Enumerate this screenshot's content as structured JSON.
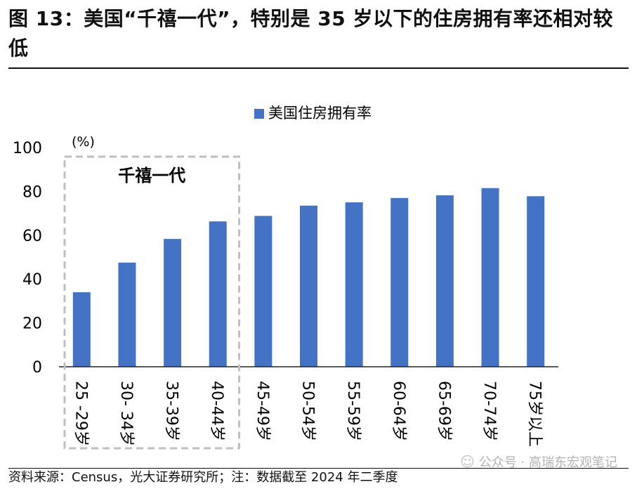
{
  "figure": {
    "title": "图 13：美国“千禧一代”，特别是 35 岁以下的住房拥有率还相对较低",
    "source": "资料来源：Census，光大证券研究所；注：数据截至 2024 年二季度",
    "watermark": "公众号 · 高瑞东宏观笔记",
    "watermark_icon": "wechat-icon"
  },
  "colors": {
    "bar": "#4472C4",
    "highlight_box": "#BFBFBF",
    "axis": "#222222"
  },
  "chart_data": {
    "type": "bar",
    "title": "",
    "legend": [
      "美国住房拥有率"
    ],
    "legend_position": "top-center",
    "unit_label": "(%)",
    "ylim": [
      0,
      100
    ],
    "yticks": [
      0,
      20,
      40,
      60,
      80,
      100
    ],
    "ytick_labels": [
      "0",
      "20",
      "40",
      "60",
      "80",
      "100"
    ],
    "categories": [
      "25 -29岁",
      "30- 34岁",
      "35-39岁",
      "40-44岁",
      "45-49岁",
      "50-54岁",
      "55-59岁",
      "60-64岁",
      "65-69岁",
      "70-74岁",
      "75岁以上"
    ],
    "values": [
      34,
      47.5,
      58.3,
      66.3,
      68.8,
      73.5,
      75,
      77,
      78.2,
      81.5,
      77.8
    ],
    "annotation": {
      "text": "千禧一代",
      "covers_categories": [
        "25 -29岁",
        "30- 34岁",
        "35-39岁",
        "40-44岁"
      ]
    }
  }
}
